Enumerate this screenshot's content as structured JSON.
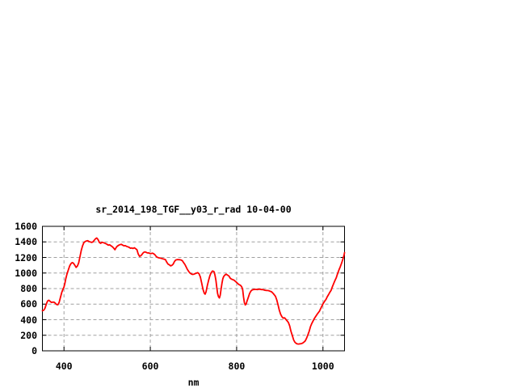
{
  "page": {
    "background": "#ffffff"
  },
  "chart_data": {
    "type": "line",
    "title": "sr_2014_198_TGF__y03_r_rad 10-04-00",
    "xlabel": "nm",
    "ylabel": "",
    "xlim": [
      350,
      1050
    ],
    "ylim": [
      0,
      1600
    ],
    "xticks": [
      400,
      600,
      800,
      1000
    ],
    "yticks": [
      0,
      200,
      400,
      600,
      800,
      1000,
      1200,
      1400,
      1600
    ],
    "grid": true,
    "grid_style": "dashed",
    "legend": false,
    "colors": {
      "line": "#ff0000",
      "grid": "#a0a0a0",
      "axis": "#000000",
      "text": "#000000",
      "background": "#ffffff"
    },
    "series": [
      {
        "points": [
          [
            350,
            515
          ],
          [
            353,
            522
          ],
          [
            356,
            548
          ],
          [
            359,
            600
          ],
          [
            362,
            640
          ],
          [
            365,
            650
          ],
          [
            368,
            635
          ],
          [
            371,
            622
          ],
          [
            374,
            625
          ],
          [
            377,
            625
          ],
          [
            380,
            612
          ],
          [
            383,
            595
          ],
          [
            386,
            592
          ],
          [
            389,
            625
          ],
          [
            392,
            690
          ],
          [
            395,
            752
          ],
          [
            398,
            795
          ],
          [
            400,
            820
          ],
          [
            402,
            865
          ],
          [
            404,
            925
          ],
          [
            407,
            990
          ],
          [
            410,
            1040
          ],
          [
            413,
            1090
          ],
          [
            416,
            1120
          ],
          [
            419,
            1135
          ],
          [
            422,
            1125
          ],
          [
            425,
            1100
          ],
          [
            428,
            1072
          ],
          [
            431,
            1090
          ],
          [
            434,
            1130
          ],
          [
            437,
            1210
          ],
          [
            440,
            1290
          ],
          [
            443,
            1350
          ],
          [
            446,
            1390
          ],
          [
            449,
            1405
          ],
          [
            452,
            1412
          ],
          [
            455,
            1415
          ],
          [
            458,
            1405
          ],
          [
            461,
            1400
          ],
          [
            464,
            1393
          ],
          [
            467,
            1400
          ],
          [
            470,
            1420
          ],
          [
            473,
            1440
          ],
          [
            476,
            1450
          ],
          [
            479,
            1430
          ],
          [
            482,
            1392
          ],
          [
            485,
            1382
          ],
          [
            488,
            1395
          ],
          [
            491,
            1390
          ],
          [
            494,
            1385
          ],
          [
            497,
            1378
          ],
          [
            500,
            1368
          ],
          [
            503,
            1358
          ],
          [
            506,
            1362
          ],
          [
            509,
            1350
          ],
          [
            512,
            1338
          ],
          [
            515,
            1320
          ],
          [
            518,
            1300
          ],
          [
            521,
            1330
          ],
          [
            524,
            1348
          ],
          [
            527,
            1358
          ],
          [
            530,
            1365
          ],
          [
            533,
            1368
          ],
          [
            536,
            1358
          ],
          [
            539,
            1350
          ],
          [
            542,
            1352
          ],
          [
            545,
            1342
          ],
          [
            548,
            1337
          ],
          [
            551,
            1330
          ],
          [
            554,
            1318
          ],
          [
            557,
            1322
          ],
          [
            560,
            1315
          ],
          [
            563,
            1325
          ],
          [
            566,
            1312
          ],
          [
            569,
            1300
          ],
          [
            572,
            1245
          ],
          [
            575,
            1215
          ],
          [
            578,
            1222
          ],
          [
            581,
            1240
          ],
          [
            584,
            1262
          ],
          [
            587,
            1272
          ],
          [
            590,
            1268
          ],
          [
            593,
            1258
          ],
          [
            596,
            1258
          ],
          [
            599,
            1252
          ],
          [
            602,
            1250
          ],
          [
            605,
            1255
          ],
          [
            608,
            1248
          ],
          [
            611,
            1233
          ],
          [
            614,
            1210
          ],
          [
            617,
            1200
          ],
          [
            620,
            1195
          ],
          [
            623,
            1192
          ],
          [
            626,
            1188
          ],
          [
            629,
            1182
          ],
          [
            632,
            1178
          ],
          [
            635,
            1172
          ],
          [
            638,
            1140
          ],
          [
            641,
            1115
          ],
          [
            644,
            1105
          ],
          [
            647,
            1092
          ],
          [
            650,
            1098
          ],
          [
            653,
            1115
          ],
          [
            656,
            1148
          ],
          [
            659,
            1168
          ],
          [
            662,
            1172
          ],
          [
            665,
            1172
          ],
          [
            668,
            1171
          ],
          [
            671,
            1168
          ],
          [
            674,
            1160
          ],
          [
            677,
            1135
          ],
          [
            680,
            1112
          ],
          [
            683,
            1080
          ],
          [
            686,
            1045
          ],
          [
            689,
            1020
          ],
          [
            692,
            1000
          ],
          [
            695,
            988
          ],
          [
            698,
            982
          ],
          [
            701,
            985
          ],
          [
            704,
            992
          ],
          [
            707,
            998
          ],
          [
            710,
            1005
          ],
          [
            713,
            990
          ],
          [
            716,
            950
          ],
          [
            719,
            870
          ],
          [
            722,
            790
          ],
          [
            725,
            740
          ],
          [
            727,
            728
          ],
          [
            729,
            755
          ],
          [
            732,
            835
          ],
          [
            735,
            905
          ],
          [
            738,
            965
          ],
          [
            741,
            1005
          ],
          [
            744,
            1025
          ],
          [
            746,
            1022
          ],
          [
            748,
            1015
          ],
          [
            750,
            968
          ],
          [
            752,
            905
          ],
          [
            754,
            810
          ],
          [
            756,
            735
          ],
          [
            758,
            695
          ],
          [
            760,
            680
          ],
          [
            762,
            715
          ],
          [
            764,
            795
          ],
          [
            766,
            870
          ],
          [
            768,
            925
          ],
          [
            770,
            955
          ],
          [
            773,
            975
          ],
          [
            776,
            985
          ],
          [
            779,
            972
          ],
          [
            782,
            962
          ],
          [
            785,
            935
          ],
          [
            788,
            922
          ],
          [
            791,
            915
          ],
          [
            794,
            908
          ],
          [
            797,
            893
          ],
          [
            800,
            880
          ],
          [
            803,
            862
          ],
          [
            806,
            850
          ],
          [
            809,
            843
          ],
          [
            812,
            822
          ],
          [
            814,
            785
          ],
          [
            816,
            690
          ],
          [
            818,
            620
          ],
          [
            820,
            590
          ],
          [
            822,
            602
          ],
          [
            824,
            640
          ],
          [
            827,
            688
          ],
          [
            830,
            738
          ],
          [
            833,
            768
          ],
          [
            836,
            782
          ],
          [
            839,
            788
          ],
          [
            842,
            790
          ],
          [
            845,
            790
          ],
          [
            848,
            788
          ],
          [
            851,
            792
          ],
          [
            854,
            792
          ],
          [
            857,
            788
          ],
          [
            860,
            788
          ],
          [
            863,
            783
          ],
          [
            866,
            778
          ],
          [
            869,
            776
          ],
          [
            872,
            775
          ],
          [
            875,
            772
          ],
          [
            878,
            765
          ],
          [
            881,
            758
          ],
          [
            884,
            742
          ],
          [
            887,
            722
          ],
          [
            890,
            700
          ],
          [
            893,
            655
          ],
          [
            896,
            590
          ],
          [
            899,
            520
          ],
          [
            902,
            470
          ],
          [
            905,
            438
          ],
          [
            908,
            420
          ],
          [
            911,
            425
          ],
          [
            914,
            405
          ],
          [
            917,
            385
          ],
          [
            920,
            365
          ],
          [
            923,
            320
          ],
          [
            926,
            250
          ],
          [
            929,
            195
          ],
          [
            932,
            140
          ],
          [
            935,
            110
          ],
          [
            938,
            95
          ],
          [
            941,
            88
          ],
          [
            944,
            87
          ],
          [
            947,
            90
          ],
          [
            950,
            92
          ],
          [
            953,
            100
          ],
          [
            956,
            112
          ],
          [
            959,
            128
          ],
          [
            962,
            162
          ],
          [
            965,
            205
          ],
          [
            968,
            250
          ],
          [
            971,
            310
          ],
          [
            974,
            350
          ],
          [
            977,
            382
          ],
          [
            980,
            415
          ],
          [
            983,
            440
          ],
          [
            986,
            465
          ],
          [
            989,
            488
          ],
          [
            992,
            510
          ],
          [
            995,
            545
          ],
          [
            998,
            580
          ],
          [
            1001,
            612
          ],
          [
            1004,
            638
          ],
          [
            1007,
            660
          ],
          [
            1010,
            695
          ],
          [
            1013,
            722
          ],
          [
            1016,
            752
          ],
          [
            1019,
            778
          ],
          [
            1022,
            825
          ],
          [
            1025,
            865
          ],
          [
            1028,
            905
          ],
          [
            1031,
            940
          ],
          [
            1034,
            995
          ],
          [
            1037,
            1040
          ],
          [
            1040,
            1080
          ],
          [
            1043,
            1125
          ],
          [
            1046,
            1175
          ],
          [
            1049,
            1235
          ],
          [
            1050,
            1262
          ]
        ]
      }
    ]
  }
}
